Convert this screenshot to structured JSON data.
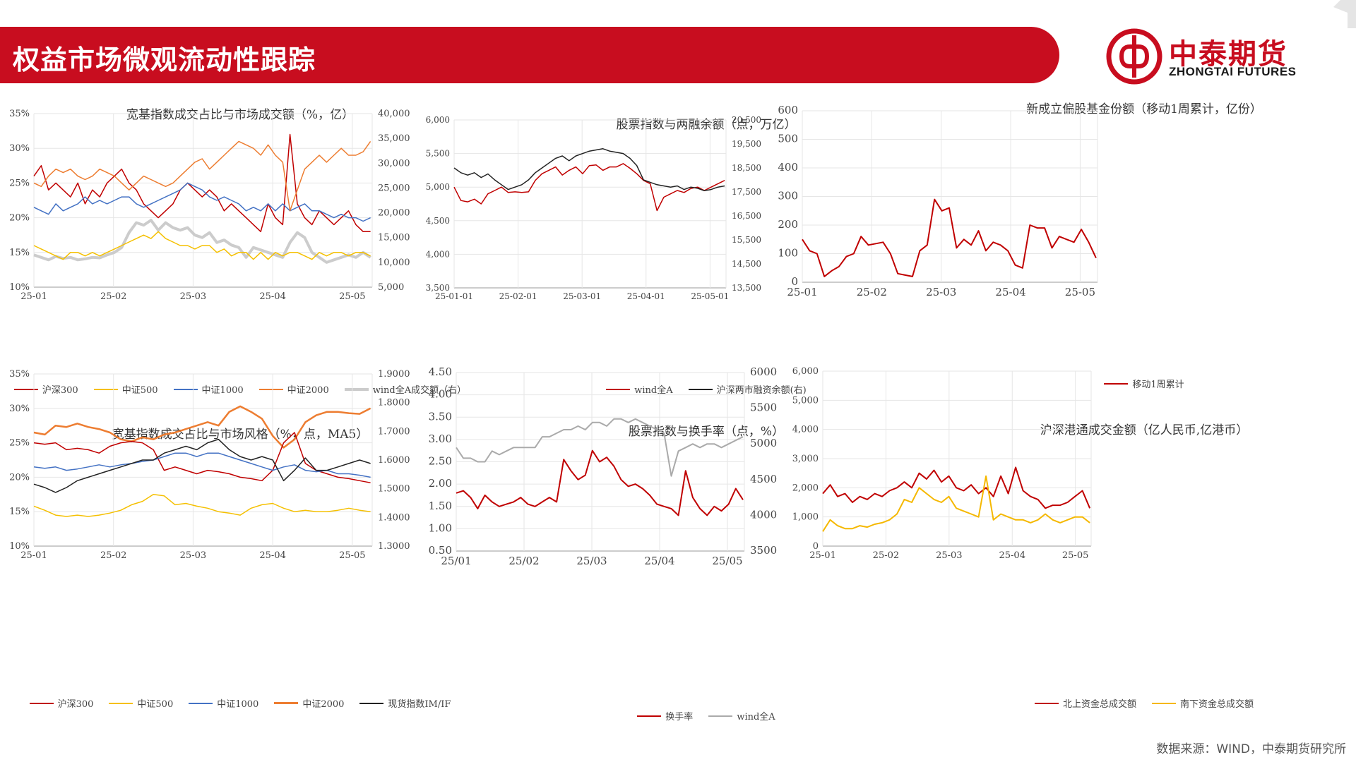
{
  "header": {
    "title": "权益市场微观流动性跟踪"
  },
  "logo": {
    "cn": "中泰期货",
    "en": "ZHONGTAI FUTURES"
  },
  "colors": {
    "brand": "#c80d1f"
  },
  "source": "数据来源：WIND，中泰期货研究所",
  "chart_data": [
    {
      "type": "line",
      "title": "宽基指数成交占比与市场成交额（%，亿）",
      "x_ticks": [
        "25-01",
        "25-02",
        "25-03",
        "25-04",
        "25-05"
      ],
      "y_ticks": [
        "10%",
        "15%",
        "20%",
        "25%",
        "30%",
        "35%"
      ],
      "ylim": [
        10,
        35
      ],
      "y2_ticks": [
        "5,000",
        "10,000",
        "15,000",
        "20,000",
        "25,000",
        "30,000",
        "35,000",
        "40,000"
      ],
      "y2lim": [
        5000,
        40000
      ],
      "series": [
        {
          "name": "沪深300",
          "color": "#c00000",
          "axis": "left",
          "width": 1.5,
          "values": [
            26,
            27.5,
            24,
            25,
            24,
            23,
            25,
            22,
            24,
            23,
            25,
            26,
            27,
            25,
            24,
            22,
            21,
            20,
            21,
            22,
            24,
            25,
            24,
            23,
            24,
            23,
            21,
            22,
            21,
            20,
            19,
            18,
            22,
            20,
            19,
            32,
            22,
            20,
            19,
            21,
            20,
            19,
            20,
            21,
            19,
            18,
            18
          ]
        },
        {
          "name": "中证500",
          "color": "#f5c000",
          "axis": "left",
          "width": 1.5,
          "values": [
            16,
            15.5,
            15,
            14.5,
            14,
            15,
            15,
            14.5,
            15,
            14.5,
            15,
            15.5,
            16,
            16.5,
            17,
            17.5,
            17,
            18,
            17,
            16.5,
            16,
            16,
            15.5,
            16,
            16,
            15,
            15.5,
            14.5,
            15,
            15,
            14,
            15,
            14,
            15,
            14.5,
            15,
            15,
            14.5,
            14,
            15,
            14.5,
            15,
            15,
            14.5,
            15,
            15,
            14.5
          ]
        },
        {
          "name": "中证1000",
          "color": "#4472c4",
          "axis": "left",
          "width": 1.5,
          "values": [
            21.5,
            21,
            20.5,
            22,
            21,
            21.5,
            22,
            23,
            22,
            22.5,
            22,
            22.5,
            23,
            23,
            22,
            21.5,
            22,
            22.5,
            23,
            23.5,
            24,
            25,
            24.5,
            24,
            23,
            22.5,
            23,
            22.5,
            22,
            21,
            21.5,
            21,
            22,
            21,
            22,
            21,
            21.5,
            22,
            21,
            21,
            20.5,
            20,
            20.5,
            20,
            20,
            19.5,
            20
          ]
        },
        {
          "name": "中证2000",
          "color": "#ed7d31",
          "axis": "left",
          "width": 1.5,
          "values": [
            25,
            24.5,
            26,
            27,
            26.5,
            27,
            26,
            25.5,
            26,
            27,
            26.5,
            26,
            25,
            24,
            25,
            26,
            25.5,
            25,
            24.5,
            25,
            26,
            27,
            28,
            28.5,
            27,
            28,
            29,
            30,
            31,
            30.5,
            30,
            29,
            30.5,
            29,
            28,
            21,
            24,
            27,
            28,
            29,
            28,
            29,
            30,
            29,
            29,
            29.5,
            31
          ]
        },
        {
          "name": "wind全A成交额（右）",
          "color": "#cccccc",
          "axis": "right",
          "width": 4,
          "values": [
            11500,
            11000,
            10500,
            11200,
            10800,
            11000,
            10500,
            10700,
            11000,
            10900,
            11500,
            12000,
            13000,
            16000,
            18000,
            17500,
            18500,
            16500,
            18000,
            17000,
            16500,
            17000,
            15500,
            15000,
            16000,
            14000,
            14500,
            13500,
            13000,
            11000,
            13000,
            12500,
            12000,
            11500,
            11000,
            14000,
            16000,
            15000,
            12000,
            11000,
            10000,
            10500,
            11000,
            11500,
            11000,
            12000,
            11000
          ]
        }
      ],
      "legend": [
        "沪深300",
        "中证500",
        "中证1000",
        "中证2000",
        "wind全A成交额（右）"
      ]
    },
    {
      "type": "line",
      "title": "股票指数与两融余额（点，万亿）",
      "x_ticks": [
        "25-01-01",
        "25-02-01",
        "25-03-01",
        "25-04-01",
        "25-05-01"
      ],
      "y_ticks": [
        "3,500",
        "4,000",
        "4,500",
        "5,000",
        "5,500",
        "6,000"
      ],
      "ylim": [
        3500,
        6000
      ],
      "y2_ticks": [
        "13,500",
        "14,500",
        "15,500",
        "16,500",
        "17,500",
        "18,500",
        "19,500",
        "20,500"
      ],
      "y2lim": [
        13500,
        20500
      ],
      "series": [
        {
          "name": "wind全A",
          "color": "#c00000",
          "axis": "left",
          "width": 1.5,
          "values": [
            5000,
            4800,
            4780,
            4820,
            4750,
            4900,
            4950,
            5000,
            4920,
            4930,
            4920,
            4930,
            5100,
            5200,
            5250,
            5300,
            5180,
            5250,
            5300,
            5200,
            5320,
            5330,
            5250,
            5300,
            5300,
            5350,
            5280,
            5200,
            5100,
            5050,
            4650,
            4850,
            4900,
            4950,
            4920,
            4980,
            5000,
            4950,
            5000,
            5050,
            5100
          ]
        },
        {
          "name": "沪深两市融资余额(右)",
          "color": "#222222",
          "axis": "right",
          "width": 1.5,
          "values": [
            18500,
            18300,
            18200,
            18300,
            18100,
            18250,
            18000,
            17800,
            17600,
            17700,
            17800,
            18000,
            18300,
            18500,
            18700,
            18900,
            19000,
            18800,
            19000,
            19100,
            19200,
            19250,
            19300,
            19200,
            19150,
            19100,
            18900,
            18600,
            18000,
            17900,
            17800,
            17750,
            17700,
            17750,
            17600,
            17700,
            17650,
            17550,
            17600,
            17700,
            17750
          ]
        }
      ],
      "legend": [
        "wind全A",
        "沪深两市融资余额(右)"
      ]
    },
    {
      "type": "line",
      "title": "新成立偏股基金份额（移动1周累计，亿份）",
      "x_ticks": [
        "25-01",
        "25-02",
        "25-03",
        "25-04",
        "25-05"
      ],
      "y_ticks": [
        "0",
        "100",
        "200",
        "300",
        "400",
        "500",
        "600"
      ],
      "ylim": [
        0,
        600
      ],
      "series": [
        {
          "name": "移动1周累计",
          "color": "#c00000",
          "axis": "left",
          "width": 2,
          "values": [
            150,
            110,
            100,
            20,
            40,
            55,
            90,
            100,
            160,
            130,
            135,
            140,
            100,
            30,
            25,
            20,
            110,
            130,
            290,
            250,
            260,
            120,
            150,
            130,
            180,
            110,
            140,
            130,
            110,
            60,
            50,
            200,
            190,
            190,
            120,
            160,
            150,
            140,
            185,
            140,
            85
          ]
        }
      ],
      "legend": [
        "移动1周累计"
      ]
    },
    {
      "type": "line",
      "title": "宽基指数成交占比与市场风格（%，点，MA5）",
      "x_ticks": [
        "25-01",
        "25-02",
        "25-03",
        "25-04",
        "25-05"
      ],
      "y_ticks": [
        "10%",
        "15%",
        "20%",
        "25%",
        "30%",
        "35%"
      ],
      "ylim": [
        10,
        35
      ],
      "y2_ticks": [
        "1.3000",
        "1.4000",
        "1.5000",
        "1.6000",
        "1.7000",
        "1.8000",
        "1.9000"
      ],
      "y2lim": [
        1.3,
        1.9
      ],
      "series": [
        {
          "name": "沪深300",
          "color": "#c00000",
          "axis": "left",
          "width": 1.5,
          "values": [
            25,
            24.8,
            25,
            24,
            24.2,
            24,
            23.5,
            24.5,
            25,
            25.2,
            25,
            24,
            21,
            21.5,
            21,
            20.5,
            21,
            20.8,
            20.5,
            20,
            19.8,
            19.5,
            21,
            25,
            26.5,
            22,
            21,
            20.5,
            20,
            19.8,
            19.5,
            19.2
          ]
        },
        {
          "name": "中证500",
          "color": "#f5c000",
          "axis": "left",
          "width": 1.5,
          "values": [
            15.8,
            15.2,
            14.5,
            14.3,
            14.5,
            14.3,
            14.5,
            14.8,
            15.2,
            16,
            16.5,
            17.5,
            17.3,
            16,
            16.2,
            15.8,
            15.5,
            15,
            14.8,
            14.5,
            15.5,
            16,
            16.2,
            15.5,
            15,
            15.2,
            15,
            15,
            15.2,
            15.5,
            15.2,
            15
          ]
        },
        {
          "name": "中证1000",
          "color": "#4472c4",
          "axis": "left",
          "width": 1.5,
          "values": [
            21.5,
            21.3,
            21.5,
            21,
            21.2,
            21.5,
            21.8,
            21.5,
            21.8,
            22,
            22.3,
            22.5,
            23,
            23.5,
            23.5,
            23,
            23.5,
            23.5,
            23,
            22.5,
            22,
            21.5,
            21,
            21.5,
            21.8,
            21,
            20.8,
            21,
            20.5,
            20.5,
            20.3,
            20
          ]
        },
        {
          "name": "中证2000",
          "color": "#ed7d31",
          "axis": "left",
          "width": 2.5,
          "values": [
            26.5,
            26.2,
            27.5,
            27.3,
            27.8,
            27.3,
            27,
            26.5,
            25.5,
            25.2,
            25.8,
            25.5,
            26.2,
            26.5,
            27,
            27.5,
            28,
            27.5,
            29.5,
            30.3,
            29.5,
            28.5,
            26,
            24.3,
            25.5,
            28,
            29,
            29.5,
            29.5,
            29.3,
            29.2,
            30
          ]
        },
        {
          "name": "现货指数IM/IF",
          "color": "#222222",
          "axis": "left",
          "width": 1.5,
          "values": [
            19,
            18.5,
            17.8,
            18.5,
            19.5,
            20,
            20.5,
            21,
            21.5,
            22,
            22.5,
            22.5,
            23.5,
            24,
            24.5,
            24,
            25,
            25.5,
            24,
            23,
            22.5,
            23,
            22.5,
            19.5,
            21,
            22.8,
            21,
            21,
            21.5,
            22,
            22.5,
            22
          ]
        }
      ],
      "legend": [
        "沪深300",
        "中证500",
        "中证1000",
        "中证2000",
        "现货指数IM/IF"
      ]
    },
    {
      "type": "line",
      "title": "股票指数与换手率（点，%）",
      "x_ticks": [
        "25/01",
        "25/02",
        "25/03",
        "25/04",
        "25/05"
      ],
      "y_ticks": [
        "0.50",
        "1.00",
        "1.50",
        "2.00",
        "2.50",
        "3.00",
        "3.50",
        "4.00",
        "4.50"
      ],
      "ylim": [
        0.5,
        4.5
      ],
      "y2_ticks": [
        "3500",
        "4000",
        "4500",
        "5000",
        "5500",
        "6000"
      ],
      "y2lim": [
        3500,
        6000
      ],
      "series": [
        {
          "name": "换手率",
          "color": "#c00000",
          "axis": "left",
          "width": 2,
          "values": [
            1.8,
            1.85,
            1.7,
            1.45,
            1.75,
            1.6,
            1.5,
            1.55,
            1.6,
            1.7,
            1.55,
            1.5,
            1.6,
            1.7,
            1.6,
            2.55,
            2.3,
            2.1,
            2.2,
            2.75,
            2.5,
            2.6,
            2.4,
            2.1,
            1.95,
            2.0,
            1.9,
            1.75,
            1.55,
            1.5,
            1.45,
            1.3,
            2.3,
            1.7,
            1.45,
            1.3,
            1.5,
            1.4,
            1.55,
            1.9,
            1.65
          ]
        },
        {
          "name": "wind全A",
          "color": "#aaaaaa",
          "axis": "right",
          "width": 2,
          "values": [
            4950,
            4800,
            4800,
            4750,
            4750,
            4900,
            4850,
            4900,
            4950,
            4950,
            4950,
            4950,
            5100,
            5100,
            5150,
            5200,
            5200,
            5250,
            5200,
            5300,
            5300,
            5250,
            5350,
            5350,
            5300,
            5350,
            5300,
            5250,
            5200,
            5150,
            4550,
            4900,
            4950,
            5000,
            4950,
            5000,
            5000,
            4950,
            5000,
            5050,
            5100
          ]
        }
      ],
      "legend": [
        "换手率",
        "wind全A"
      ]
    },
    {
      "type": "line",
      "title": "沪深港通成交金额（亿人民币,亿港币）",
      "x_ticks": [
        "25-01",
        "25-02",
        "25-03",
        "25-04",
        "25-05"
      ],
      "y_ticks": [
        "0",
        "1,000",
        "2,000",
        "3,000",
        "4,000",
        "5,000",
        "6,000"
      ],
      "ylim": [
        0,
        6000
      ],
      "series": [
        {
          "name": "北上资金总成交额",
          "color": "#c00000",
          "axis": "left",
          "width": 2,
          "values": [
            1800,
            2100,
            1700,
            1800,
            1500,
            1700,
            1600,
            1800,
            1700,
            1900,
            2000,
            2200,
            2000,
            2500,
            2300,
            2600,
            2200,
            2400,
            2000,
            1900,
            2100,
            1800,
            2000,
            1700,
            2400,
            1800,
            2700,
            1900,
            1700,
            1600,
            1300,
            1400,
            1400,
            1500,
            1700,
            1900,
            1300
          ]
        },
        {
          "name": "南下资金总成交额",
          "color": "#f5b800",
          "axis": "left",
          "width": 2,
          "values": [
            500,
            900,
            700,
            600,
            600,
            700,
            650,
            750,
            800,
            900,
            1100,
            1600,
            1500,
            2000,
            1800,
            1600,
            1500,
            1700,
            1300,
            1200,
            1100,
            1000,
            2400,
            900,
            1100,
            1000,
            900,
            900,
            800,
            900,
            1100,
            900,
            800,
            900,
            1000,
            1000,
            800
          ]
        }
      ],
      "legend": [
        "北上资金总成交额",
        "南下资金总成交额"
      ]
    }
  ]
}
